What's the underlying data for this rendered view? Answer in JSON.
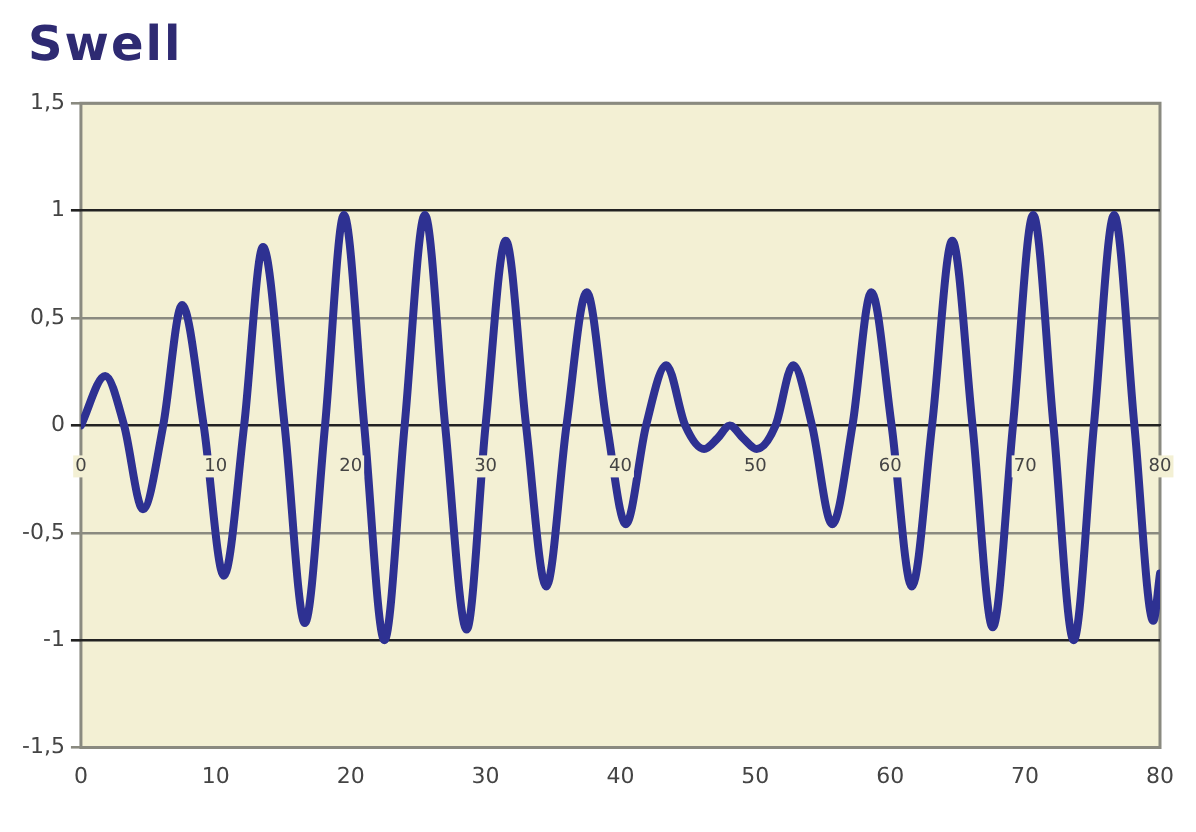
{
  "chart_data": {
    "type": "line",
    "title": "Swell",
    "x": [
      0,
      1.8,
      3.2,
      4.6,
      6.1,
      7.5,
      9.1,
      10.6,
      12.1,
      13.5,
      15.1,
      16.6,
      18.1,
      19.5,
      21.0,
      22.5,
      24.0,
      25.5,
      27.0,
      28.6,
      30.0,
      31.5,
      33.0,
      34.5,
      36.0,
      37.5,
      39.0,
      40.4,
      41.9,
      43.4,
      44.8,
      46.2,
      47.2,
      48.1,
      49.1,
      50.1,
      51.5,
      52.8,
      54.2,
      55.7,
      57.2,
      58.6,
      60.1,
      61.6,
      63.1,
      64.6,
      66.1,
      67.6,
      69.1,
      70.6,
      72.1,
      73.6,
      75.1,
      76.6,
      78.1,
      79.5,
      80
    ],
    "series": [
      {
        "color": "#2e3192",
        "values": [
          0,
          0.23,
          0,
          -0.39,
          0,
          0.56,
          0,
          -0.7,
          0,
          0.83,
          0,
          -0.92,
          0,
          0.98,
          0,
          -1.0,
          0,
          0.98,
          0,
          -0.95,
          0,
          0.86,
          0,
          -0.75,
          0,
          0.62,
          0,
          -0.46,
          0,
          0.28,
          0,
          -0.11,
          -0.06,
          0.0,
          -0.06,
          -0.11,
          0,
          0.28,
          0,
          -0.46,
          0,
          0.62,
          0,
          -0.75,
          0,
          0.86,
          0,
          -0.94,
          0,
          0.98,
          0,
          -1.0,
          0,
          0.98,
          0,
          -0.91,
          -0.69
        ]
      }
    ],
    "xlim": [
      0,
      80
    ],
    "xticks": [
      0,
      10,
      20,
      30,
      40,
      50,
      60,
      70,
      80
    ],
    "x2lim": [
      0,
      80
    ],
    "x2ticks": [
      0,
      10,
      20,
      30,
      40,
      50,
      60,
      70,
      80
    ],
    "ylim": [
      -1.5,
      1.5
    ],
    "yticks": [
      {
        "value": -1.5,
        "label": "-1,5"
      },
      {
        "value": -1,
        "label": "-1"
      },
      {
        "value": -0.5,
        "label": "-0,5"
      },
      {
        "value": 0,
        "label": "0"
      },
      {
        "value": 0.5,
        "label": "0,5"
      },
      {
        "value": 1,
        "label": "1"
      },
      {
        "value": 1.5,
        "label": "1,5"
      }
    ],
    "grid": "y",
    "legend": false,
    "marker": "none",
    "line_style": "solid"
  }
}
